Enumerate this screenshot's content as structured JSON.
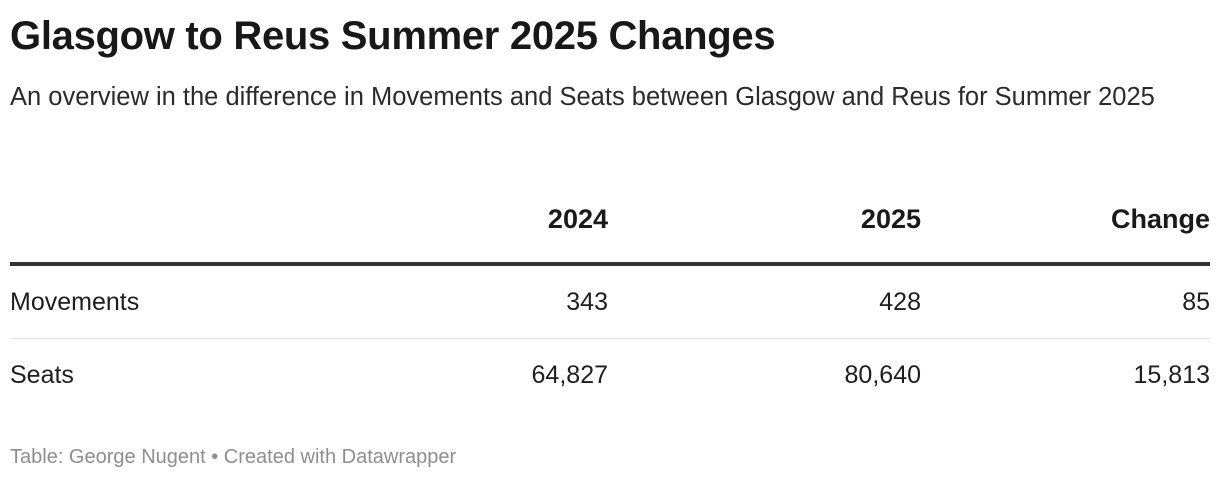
{
  "header": {
    "title": "Glasgow to Reus Summer 2025 Changes",
    "subtitle": "An overview in the difference in Movements and Seats between Glasgow and Reus for Summer 2025"
  },
  "chart_data": {
    "type": "table",
    "title": "Glasgow to Reus Summer 2025 Changes",
    "subtitle": "An overview in the difference in Movements and Seats between Glasgow and Reus for Summer 2025",
    "columns": [
      "",
      "2024",
      "2025",
      "Change"
    ],
    "rows": [
      {
        "label": "Movements",
        "y2024": "343",
        "y2025": "428",
        "change": "85"
      },
      {
        "label": "Seats",
        "y2024": "64,827",
        "y2025": "80,640",
        "change": "15,813"
      }
    ]
  },
  "footer": {
    "text": "Table: George Nugent • Created with Datawrapper"
  }
}
